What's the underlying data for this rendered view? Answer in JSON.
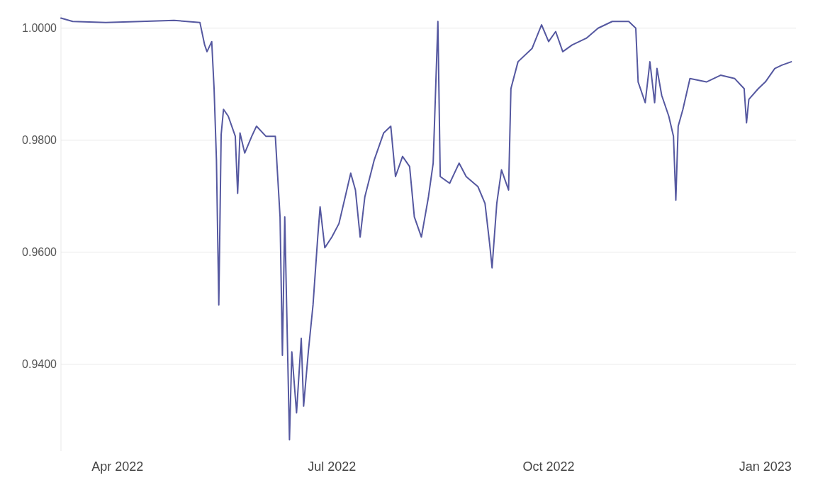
{
  "chart_data": {
    "type": "line",
    "x": [
      "2022-03-08",
      "2022-03-13",
      "2022-03-27",
      "2022-04-11",
      "2022-04-25",
      "2022-05-06",
      "2022-05-08",
      "2022-05-09",
      "2022-05-11",
      "2022-05-12",
      "2022-05-13",
      "2022-05-14",
      "2022-05-15",
      "2022-05-16",
      "2022-05-18",
      "2022-05-21",
      "2022-05-22",
      "2022-05-23",
      "2022-05-25",
      "2022-05-28",
      "2022-05-30",
      "2022-06-03",
      "2022-06-07",
      "2022-06-08",
      "2022-06-09",
      "2022-06-10",
      "2022-06-11",
      "2022-06-13",
      "2022-06-14",
      "2022-06-16",
      "2022-06-18",
      "2022-06-19",
      "2022-06-21",
      "2022-06-23",
      "2022-06-25",
      "2022-06-26",
      "2022-06-28",
      "2022-07-01",
      "2022-07-04",
      "2022-07-07",
      "2022-07-09",
      "2022-07-11",
      "2022-07-13",
      "2022-07-15",
      "2022-07-19",
      "2022-07-23",
      "2022-07-26",
      "2022-07-28",
      "2022-07-31",
      "2022-08-03",
      "2022-08-05",
      "2022-08-08",
      "2022-08-11",
      "2022-08-13",
      "2022-08-15",
      "2022-08-16",
      "2022-08-20",
      "2022-08-24",
      "2022-08-27",
      "2022-09-01",
      "2022-09-04",
      "2022-09-06",
      "2022-09-07",
      "2022-09-09",
      "2022-09-11",
      "2022-09-14",
      "2022-09-15",
      "2022-09-18",
      "2022-09-24",
      "2022-09-28",
      "2022-10-01",
      "2022-10-04",
      "2022-10-07",
      "2022-10-11",
      "2022-10-17",
      "2022-10-22",
      "2022-10-28",
      "2022-11-04",
      "2022-11-07",
      "2022-11-08",
      "2022-11-11",
      "2022-11-13",
      "2022-11-15",
      "2022-11-16",
      "2022-11-18",
      "2022-11-21",
      "2022-11-23",
      "2022-11-24",
      "2022-11-25",
      "2022-11-27",
      "2022-11-30",
      "2022-12-07",
      "2022-12-13",
      "2022-12-19",
      "2022-12-23",
      "2022-12-24",
      "2022-12-25",
      "2022-12-29",
      "2023-01-01",
      "2023-01-05",
      "2023-01-08",
      "2023-01-12"
    ],
    "series": [
      {
        "color": "#5558a0",
        "values": [
          1.0018,
          1.0012,
          1.001,
          1.0012,
          1.0014,
          1.001,
          0.997,
          0.9958,
          0.9976,
          0.9892,
          0.9765,
          0.9506,
          0.981,
          0.9855,
          0.9843,
          0.9807,
          0.9705,
          0.9813,
          0.9777,
          0.9807,
          0.9825,
          0.9807,
          0.9807,
          0.9735,
          0.9663,
          0.9416,
          0.9663,
          0.9265,
          0.9422,
          0.9313,
          0.9446,
          0.9325,
          0.9422,
          0.9506,
          0.9627,
          0.9681,
          0.9608,
          0.9627,
          0.9651,
          0.9705,
          0.9741,
          0.9711,
          0.9627,
          0.9699,
          0.9765,
          0.9813,
          0.9825,
          0.9735,
          0.9771,
          0.9753,
          0.9663,
          0.9627,
          0.9699,
          0.9759,
          1.0012,
          0.9735,
          0.9723,
          0.9759,
          0.9735,
          0.9717,
          0.9687,
          0.9614,
          0.9572,
          0.9687,
          0.9747,
          0.9711,
          0.9892,
          0.994,
          0.9964,
          1.0006,
          0.9976,
          0.9994,
          0.9958,
          0.997,
          0.9982,
          1.0,
          1.0012,
          1.0012,
          1.0,
          0.9904,
          0.9867,
          0.994,
          0.9867,
          0.9928,
          0.988,
          0.9843,
          0.9807,
          0.9693,
          0.9825,
          0.9855,
          0.991,
          0.9904,
          0.9916,
          0.991,
          0.9892,
          0.9831,
          0.9873,
          0.9892,
          0.9904,
          0.9928,
          0.9934,
          0.994
        ]
      }
    ],
    "xlim": [
      "2022-03-08",
      "2023-01-14"
    ],
    "xticks": [
      {
        "value": "2022-04-01",
        "label": "Apr 2022"
      },
      {
        "value": "2022-07-01",
        "label": "Jul 2022"
      },
      {
        "value": "2022-10-01",
        "label": "Oct 2022"
      },
      {
        "value": "2023-01-01",
        "label": "Jan 2023"
      }
    ],
    "ylim": [
      0.9245,
      1.0025
    ],
    "yticks": [
      {
        "value": 0.94,
        "label": "0.9400"
      },
      {
        "value": 0.96,
        "label": "0.9600"
      },
      {
        "value": 0.98,
        "label": "0.9800"
      },
      {
        "value": 1.0,
        "label": "1.0000"
      }
    ],
    "grid": "y",
    "line_style": "solid",
    "marker": "none"
  }
}
